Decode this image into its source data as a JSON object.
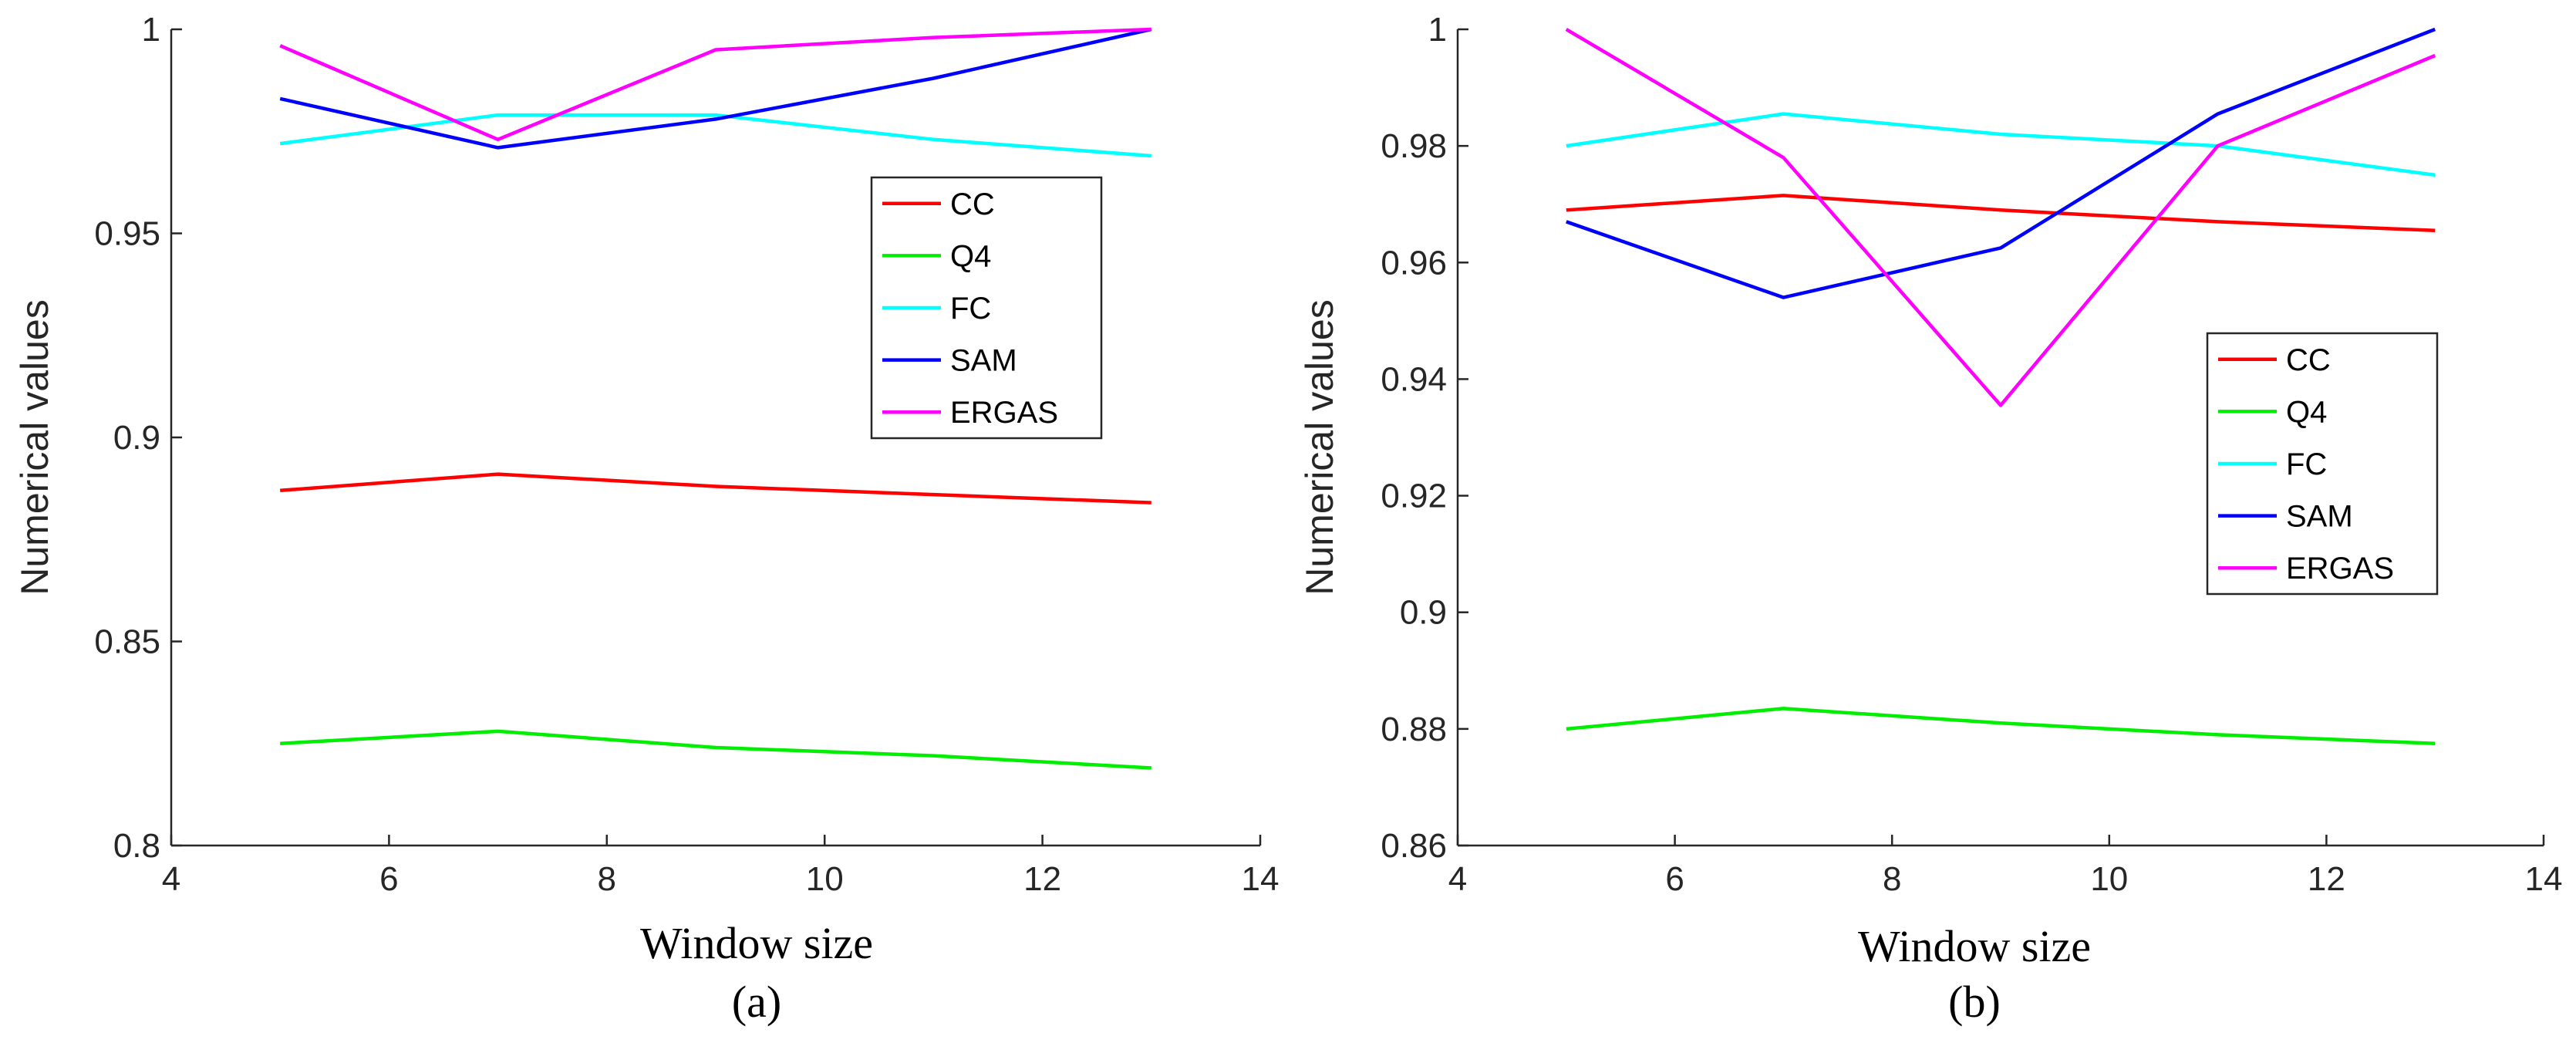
{
  "chart_data": [
    {
      "type": "line",
      "caption": "(a)",
      "xlabel": "Window size",
      "ylabel": "Numerical values",
      "xlim": [
        4,
        14
      ],
      "ylim": [
        0.8,
        1.0
      ],
      "xticks": [
        4,
        6,
        8,
        10,
        12,
        14
      ],
      "yticks": [
        0.8,
        0.85,
        0.9,
        0.95,
        1.0
      ],
      "xtick_labels": [
        "4",
        "6",
        "8",
        "10",
        "12",
        "14"
      ],
      "ytick_labels": [
        "0.8",
        "0.85",
        "0.9",
        "0.95",
        "1"
      ],
      "legend_position": "right",
      "series": [
        {
          "name": "CC",
          "color": "#ff0000",
          "x": [
            5,
            7,
            9,
            11,
            13
          ],
          "values": [
            0.887,
            0.891,
            0.888,
            0.886,
            0.884
          ]
        },
        {
          "name": "Q4",
          "color": "#00ee00",
          "x": [
            5,
            7,
            9,
            11,
            13
          ],
          "values": [
            0.825,
            0.828,
            0.824,
            0.822,
            0.819
          ]
        },
        {
          "name": "FC",
          "color": "#00ffff",
          "x": [
            5,
            7,
            9,
            11,
            13
          ],
          "values": [
            0.972,
            0.979,
            0.979,
            0.973,
            0.969
          ]
        },
        {
          "name": "SAM",
          "color": "#0000ff",
          "x": [
            5,
            7,
            9,
            11,
            13
          ],
          "values": [
            0.983,
            0.971,
            0.978,
            0.988,
            1.0
          ]
        },
        {
          "name": "ERGAS",
          "color": "#ff00ff",
          "x": [
            5,
            7,
            9,
            11,
            13
          ],
          "values": [
            0.996,
            0.973,
            0.995,
            0.998,
            1.0
          ]
        }
      ]
    },
    {
      "type": "line",
      "caption": "(b)",
      "xlabel": "Window size",
      "ylabel": "Numerical values",
      "xlim": [
        4,
        14
      ],
      "ylim": [
        0.86,
        1.0
      ],
      "xticks": [
        4,
        6,
        8,
        10,
        12,
        14
      ],
      "yticks": [
        0.86,
        0.88,
        0.9,
        0.92,
        0.94,
        0.96,
        0.98,
        1.0
      ],
      "xtick_labels": [
        "4",
        "6",
        "8",
        "10",
        "12",
        "14"
      ],
      "ytick_labels": [
        "0.86",
        "0.88",
        "0.9",
        "0.92",
        "0.94",
        "0.96",
        "0.98",
        "1"
      ],
      "legend_position": "right",
      "series": [
        {
          "name": "CC",
          "color": "#ff0000",
          "x": [
            5,
            7,
            9,
            11,
            13
          ],
          "values": [
            0.969,
            0.9715,
            0.969,
            0.967,
            0.9655
          ]
        },
        {
          "name": "Q4",
          "color": "#00ee00",
          "x": [
            5,
            7,
            9,
            11,
            13
          ],
          "values": [
            0.88,
            0.8835,
            0.881,
            0.879,
            0.8775
          ]
        },
        {
          "name": "FC",
          "color": "#00ffff",
          "x": [
            5,
            7,
            9,
            11,
            13
          ],
          "values": [
            0.98,
            0.9855,
            0.982,
            0.98,
            0.975
          ]
        },
        {
          "name": "SAM",
          "color": "#0000ff",
          "x": [
            5,
            7,
            9,
            11,
            13
          ],
          "values": [
            0.967,
            0.954,
            0.9625,
            0.9855,
            1.0
          ]
        },
        {
          "name": "ERGAS",
          "color": "#ff00ff",
          "x": [
            5,
            7,
            9,
            11,
            13
          ],
          "values": [
            1.0,
            0.978,
            0.9355,
            0.98,
            0.9955
          ]
        }
      ]
    }
  ]
}
